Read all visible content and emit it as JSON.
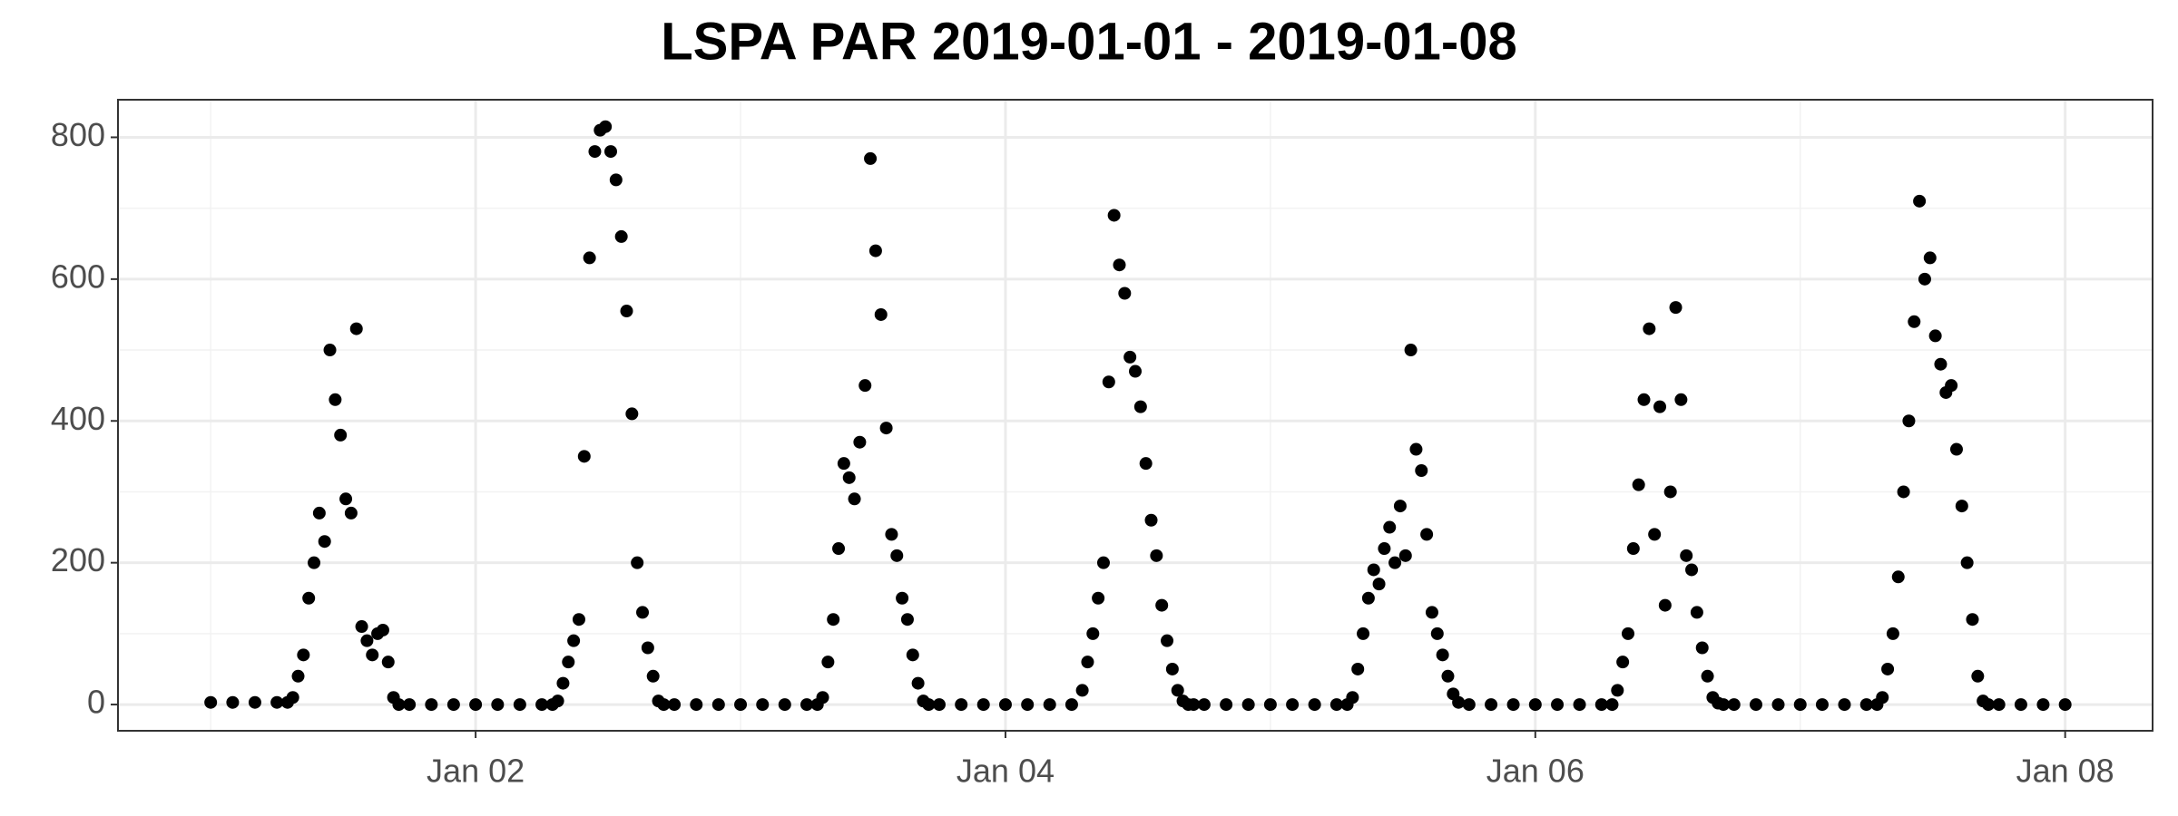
{
  "chart_data": {
    "type": "scatter",
    "title": "LSPA PAR 2019-01-01 - 2019-01-08",
    "color": "#000000",
    "grid": true,
    "xlim": [
      0.65,
      8.33
    ],
    "ylim": [
      -37,
      853
    ],
    "xticks": [
      {
        "value": 2,
        "label": "Jan 02"
      },
      {
        "value": 4,
        "label": "Jan 04"
      },
      {
        "value": 6,
        "label": "Jan 06"
      },
      {
        "value": 8,
        "label": "Jan 08"
      }
    ],
    "yticks": [
      0,
      200,
      400,
      600,
      800
    ],
    "minor_xticks": [
      1,
      3,
      5,
      7
    ],
    "minor_yticks": [
      100,
      300,
      500,
      700
    ],
    "x": [
      1,
      1.083,
      1.167,
      1.25,
      1.29,
      1.31,
      1.33,
      1.35,
      1.37,
      1.39,
      1.41,
      1.43,
      1.45,
      1.47,
      1.49,
      1.51,
      1.53,
      1.55,
      1.57,
      1.59,
      1.61,
      1.63,
      1.65,
      1.67,
      1.69,
      1.71,
      1.75,
      1.833,
      1.917,
      2,
      2.083,
      2.167,
      2.25,
      2.29,
      2.31,
      2.33,
      2.35,
      2.37,
      2.39,
      2.41,
      2.43,
      2.45,
      2.47,
      2.49,
      2.51,
      2.53,
      2.55,
      2.57,
      2.59,
      2.61,
      2.63,
      2.65,
      2.67,
      2.69,
      2.71,
      2.75,
      2.833,
      2.917,
      3,
      3.083,
      3.167,
      3.25,
      3.29,
      3.31,
      3.33,
      3.35,
      3.37,
      3.39,
      3.41,
      3.43,
      3.45,
      3.47,
      3.49,
      3.51,
      3.53,
      3.55,
      3.57,
      3.59,
      3.61,
      3.63,
      3.65,
      3.67,
      3.69,
      3.71,
      3.75,
      3.833,
      3.917,
      4,
      4.083,
      4.167,
      4.25,
      4.29,
      4.31,
      4.33,
      4.35,
      4.37,
      4.39,
      4.41,
      4.43,
      4.45,
      4.47,
      4.49,
      4.51,
      4.53,
      4.55,
      4.57,
      4.59,
      4.61,
      4.63,
      4.65,
      4.67,
      4.69,
      4.71,
      4.75,
      4.833,
      4.917,
      5,
      5.083,
      5.167,
      5.25,
      5.29,
      5.31,
      5.33,
      5.35,
      5.37,
      5.39,
      5.41,
      5.43,
      5.45,
      5.47,
      5.49,
      5.51,
      5.53,
      5.55,
      5.57,
      5.59,
      5.61,
      5.63,
      5.65,
      5.67,
      5.69,
      5.71,
      5.75,
      5.833,
      5.917,
      6,
      6.083,
      6.167,
      6.25,
      6.29,
      6.31,
      6.33,
      6.35,
      6.37,
      6.39,
      6.41,
      6.43,
      6.45,
      6.47,
      6.49,
      6.51,
      6.53,
      6.55,
      6.57,
      6.59,
      6.61,
      6.63,
      6.65,
      6.67,
      6.69,
      6.71,
      6.75,
      6.833,
      6.917,
      7,
      7.083,
      7.167,
      7.25,
      7.29,
      7.31,
      7.33,
      7.35,
      7.37,
      7.39,
      7.41,
      7.43,
      7.45,
      7.47,
      7.49,
      7.51,
      7.53,
      7.55,
      7.57,
      7.59,
      7.61,
      7.63,
      7.65,
      7.67,
      7.69,
      7.71,
      7.75,
      7.833,
      7.917,
      8
    ],
    "values": [
      3,
      3,
      3,
      3,
      3,
      10,
      40,
      70,
      150,
      200,
      270,
      230,
      500,
      430,
      380,
      290,
      270,
      530,
      110,
      90,
      70,
      100,
      105,
      60,
      10,
      0,
      0,
      0,
      0,
      0,
      0,
      0,
      0,
      0,
      5,
      30,
      60,
      90,
      120,
      350,
      630,
      780,
      810,
      815,
      780,
      740,
      660,
      555,
      410,
      200,
      130,
      80,
      40,
      5,
      0,
      0,
      0,
      0,
      0,
      0,
      0,
      0,
      0,
      10,
      60,
      120,
      220,
      340,
      320,
      290,
      370,
      450,
      770,
      640,
      550,
      390,
      240,
      210,
      150,
      120,
      70,
      30,
      5,
      0,
      0,
      0,
      0,
      0,
      0,
      0,
      0,
      20,
      60,
      100,
      150,
      200,
      455,
      690,
      620,
      580,
      490,
      470,
      420,
      340,
      260,
      210,
      140,
      90,
      50,
      20,
      5,
      0,
      0,
      0,
      0,
      0,
      0,
      0,
      0,
      0,
      0,
      10,
      50,
      100,
      150,
      190,
      170,
      220,
      250,
      200,
      280,
      210,
      500,
      360,
      330,
      240,
      130,
      100,
      70,
      40,
      15,
      3,
      0,
      0,
      0,
      0,
      0,
      0,
      0,
      0,
      20,
      60,
      100,
      220,
      310,
      430,
      530,
      240,
      420,
      140,
      300,
      560,
      430,
      210,
      190,
      130,
      80,
      40,
      10,
      2,
      0,
      0,
      0,
      0,
      0,
      0,
      0,
      0,
      0,
      10,
      50,
      100,
      180,
      300,
      400,
      540,
      710,
      600,
      630,
      520,
      480,
      440,
      450,
      360,
      280,
      200,
      120,
      40,
      5,
      0,
      0,
      0,
      0,
      0
    ]
  }
}
